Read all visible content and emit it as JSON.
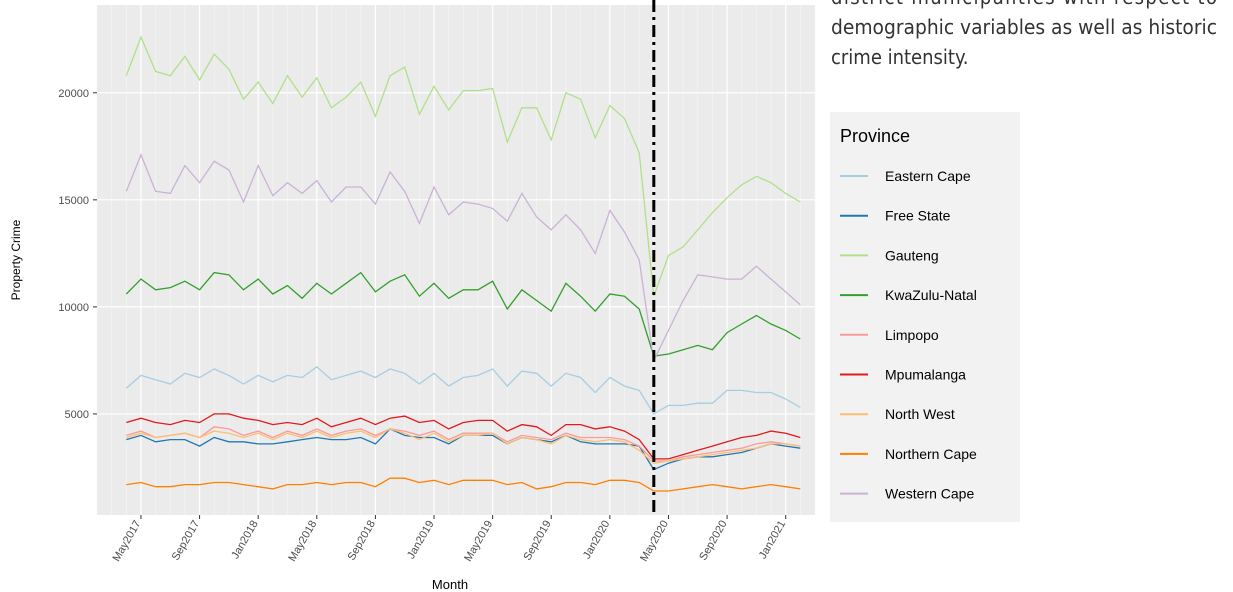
{
  "side_text": [
    "district municipalities with respect to",
    "demographic variables as well as historic",
    "crime intensity."
  ],
  "chart_data": {
    "type": "line",
    "x_label": "Month",
    "y_label": "Property Crime",
    "legend_title": "Province",
    "legend_position": "right",
    "grid": true,
    "x": [
      "2017-04",
      "2017-05",
      "2017-06",
      "2017-07",
      "2017-08",
      "2017-09",
      "2017-10",
      "2017-11",
      "2017-12",
      "2018-01",
      "2018-02",
      "2018-03",
      "2018-04",
      "2018-05",
      "2018-06",
      "2018-07",
      "2018-08",
      "2018-09",
      "2018-10",
      "2018-11",
      "2018-12",
      "2019-01",
      "2019-02",
      "2019-03",
      "2019-04",
      "2019-05",
      "2019-06",
      "2019-07",
      "2019-08",
      "2019-09",
      "2019-10",
      "2019-11",
      "2019-12",
      "2020-01",
      "2020-02",
      "2020-03",
      "2020-04",
      "2020-05",
      "2020-06",
      "2020-07",
      "2020-08",
      "2020-09",
      "2020-10",
      "2020-11",
      "2020-12",
      "2021-01",
      "2021-02"
    ],
    "xlim": [
      "2017-02",
      "2021-03"
    ],
    "xticks": [
      {
        "value": "2017-05",
        "label": "May2017"
      },
      {
        "value": "2017-09",
        "label": "Sep2017"
      },
      {
        "value": "2018-01",
        "label": "Jan2018"
      },
      {
        "value": "2018-05",
        "label": "May2018"
      },
      {
        "value": "2018-09",
        "label": "Sep2018"
      },
      {
        "value": "2019-01",
        "label": "Jan2019"
      },
      {
        "value": "2019-05",
        "label": "May2019"
      },
      {
        "value": "2019-09",
        "label": "Sep2019"
      },
      {
        "value": "2020-01",
        "label": "Jan2020"
      },
      {
        "value": "2020-05",
        "label": "May2020"
      },
      {
        "value": "2020-09",
        "label": "Sep2020"
      },
      {
        "value": "2021-01",
        "label": "Jan2021"
      }
    ],
    "vline_x": "2020-04",
    "ylim": [
      280,
      24100
    ],
    "yticks": [
      5000,
      10000,
      15000,
      20000
    ],
    "series": [
      {
        "name": "Eastern Cape",
        "color": "#a6cee3",
        "values": [
          6200,
          6800,
          6600,
          6400,
          6900,
          6700,
          7100,
          6800,
          6400,
          6800,
          6500,
          6800,
          6700,
          7200,
          6600,
          6800,
          7000,
          6700,
          7100,
          6900,
          6400,
          6900,
          6300,
          6700,
          6800,
          7100,
          6300,
          7000,
          6900,
          6300,
          6900,
          6700,
          6000,
          6700,
          6300,
          6100,
          5000,
          5400,
          5400,
          5500,
          5500,
          6100,
          6100,
          6000,
          6000,
          5700,
          5300
        ]
      },
      {
        "name": "Free State",
        "color": "#1f78b4",
        "values": [
          3800,
          4000,
          3700,
          3800,
          3800,
          3500,
          3900,
          3700,
          3700,
          3600,
          3600,
          3700,
          3800,
          3900,
          3800,
          3800,
          3900,
          3600,
          4300,
          4000,
          3900,
          3900,
          3600,
          4000,
          4000,
          4000,
          3600,
          3900,
          3800,
          3700,
          4000,
          3700,
          3600,
          3600,
          3600,
          3500,
          2400,
          2700,
          2900,
          3000,
          3000,
          3100,
          3200,
          3400,
          3600,
          3500,
          3400
        ]
      },
      {
        "name": "Gauteng",
        "color": "#b2df8a",
        "values": [
          20800,
          22600,
          21000,
          20800,
          21700,
          20600,
          21800,
          21100,
          19700,
          20500,
          19500,
          20800,
          19800,
          20700,
          19300,
          19800,
          20500,
          18900,
          20800,
          21200,
          19000,
          20300,
          19200,
          20100,
          20100,
          20200,
          17700,
          19300,
          19300,
          17800,
          20000,
          19700,
          17900,
          19400,
          18800,
          17200,
          10500,
          12400,
          12800,
          13600,
          14400,
          15100,
          15700,
          16100,
          15800,
          15300,
          14900
        ]
      },
      {
        "name": "KwaZulu-Natal",
        "color": "#33a02c",
        "values": [
          10600,
          11300,
          10800,
          10900,
          11200,
          10800,
          11600,
          11500,
          10800,
          11300,
          10600,
          11000,
          10400,
          11100,
          10600,
          11100,
          11600,
          10700,
          11200,
          11500,
          10500,
          11100,
          10400,
          10800,
          10800,
          11200,
          9900,
          10800,
          10300,
          9800,
          11100,
          10500,
          9800,
          10600,
          10500,
          9900,
          7700,
          7800,
          8000,
          8200,
          8000,
          8800,
          9200,
          9600,
          9200,
          8900,
          8500
        ]
      },
      {
        "name": "Limpopo",
        "color": "#fb9a99",
        "values": [
          4000,
          4200,
          3900,
          4000,
          4100,
          3900,
          4400,
          4300,
          4000,
          4200,
          3900,
          4200,
          4000,
          4300,
          4000,
          4200,
          4300,
          4000,
          4300,
          4200,
          4000,
          4200,
          3800,
          4100,
          4100,
          4100,
          3700,
          4000,
          3900,
          3800,
          4100,
          3900,
          3900,
          3900,
          3800,
          3500,
          2800,
          2800,
          3000,
          3100,
          3200,
          3300,
          3400,
          3600,
          3700,
          3600,
          3500
        ]
      },
      {
        "name": "Mpumalanga",
        "color": "#e31a1c",
        "values": [
          4600,
          4800,
          4600,
          4500,
          4700,
          4600,
          5000,
          5000,
          4800,
          4700,
          4500,
          4600,
          4500,
          4800,
          4400,
          4600,
          4800,
          4500,
          4800,
          4900,
          4600,
          4700,
          4300,
          4600,
          4700,
          4700,
          4200,
          4500,
          4400,
          4000,
          4500,
          4500,
          4300,
          4400,
          4200,
          3800,
          2900,
          2900,
          3100,
          3300,
          3500,
          3700,
          3900,
          4000,
          4200,
          4100,
          3900
        ]
      },
      {
        "name": "North West",
        "color": "#fdbf6f",
        "values": [
          3900,
          4100,
          3900,
          4000,
          4100,
          3900,
          4200,
          4100,
          3900,
          4100,
          3800,
          4100,
          3900,
          4200,
          3900,
          4100,
          4200,
          3900,
          4300,
          4100,
          3800,
          4100,
          3700,
          4000,
          4000,
          4100,
          3600,
          3900,
          3800,
          3600,
          4000,
          3800,
          3700,
          3800,
          3700,
          3300,
          2700,
          2800,
          2900,
          3000,
          3100,
          3200,
          3300,
          3400,
          3600,
          3600,
          3500
        ]
      },
      {
        "name": "Northern Cape",
        "color": "#ff7f00",
        "values": [
          1700,
          1800,
          1600,
          1600,
          1700,
          1700,
          1800,
          1800,
          1700,
          1600,
          1500,
          1700,
          1700,
          1800,
          1700,
          1800,
          1800,
          1600,
          2000,
          2000,
          1800,
          1900,
          1700,
          1900,
          1900,
          1900,
          1700,
          1800,
          1500,
          1600,
          1800,
          1800,
          1700,
          1900,
          1900,
          1800,
          1400,
          1400,
          1500,
          1600,
          1700,
          1600,
          1500,
          1600,
          1700,
          1600,
          1500
        ]
      },
      {
        "name": "Western Cape",
        "color": "#cab2d6",
        "values": [
          15400,
          17100,
          15400,
          15300,
          16600,
          15800,
          16800,
          16400,
          14900,
          16600,
          15200,
          15800,
          15300,
          15900,
          14900,
          15600,
          15600,
          14800,
          16300,
          15400,
          13900,
          15600,
          14300,
          14900,
          14800,
          14600,
          14000,
          15300,
          14200,
          13600,
          14300,
          13600,
          12500,
          14500,
          13500,
          12200,
          7500,
          8900,
          10300,
          11500,
          11400,
          11300,
          11300,
          11900,
          11300,
          10700,
          10100
        ]
      }
    ]
  }
}
